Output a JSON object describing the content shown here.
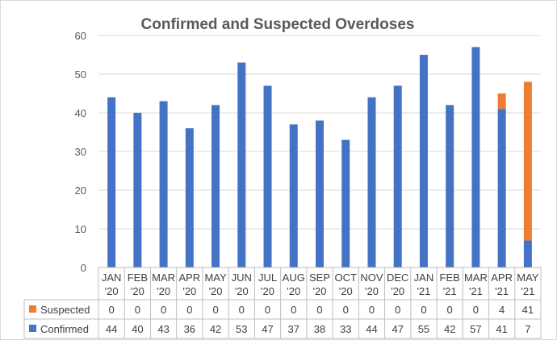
{
  "chart_data": {
    "type": "bar",
    "stacked": true,
    "title": "Confirmed and Suspected Overdoses",
    "categories": [
      [
        "JAN",
        "'20"
      ],
      [
        "FEB",
        "'20"
      ],
      [
        "MAR",
        "'20"
      ],
      [
        "APR",
        "'20"
      ],
      [
        "MAY",
        "'20"
      ],
      [
        "JUN",
        "'20"
      ],
      [
        "JUL",
        "'20"
      ],
      [
        "AUG",
        "'20"
      ],
      [
        "SEP",
        "'20"
      ],
      [
        "OCT",
        "'20"
      ],
      [
        "NOV",
        "'20"
      ],
      [
        "DEC",
        "'20"
      ],
      [
        "JAN",
        "'21"
      ],
      [
        "FEB",
        "'21"
      ],
      [
        "MAR",
        "'21"
      ],
      [
        "APR",
        "'21"
      ],
      [
        "MAY",
        "'21"
      ]
    ],
    "series": [
      {
        "name": "Confirmed",
        "color": "#4472C4",
        "values": [
          44,
          40,
          43,
          36,
          42,
          53,
          47,
          37,
          38,
          33,
          44,
          47,
          55,
          42,
          57,
          41,
          7
        ]
      },
      {
        "name": "Suspected",
        "color": "#ED7D31",
        "values": [
          0,
          0,
          0,
          0,
          0,
          0,
          0,
          0,
          0,
          0,
          0,
          0,
          0,
          0,
          0,
          4,
          41
        ]
      }
    ],
    "ylim": [
      0,
      60
    ],
    "yticks": [
      0,
      10,
      20,
      30,
      40,
      50,
      60
    ],
    "grid": true,
    "legend": "data-table",
    "data_table": true
  }
}
